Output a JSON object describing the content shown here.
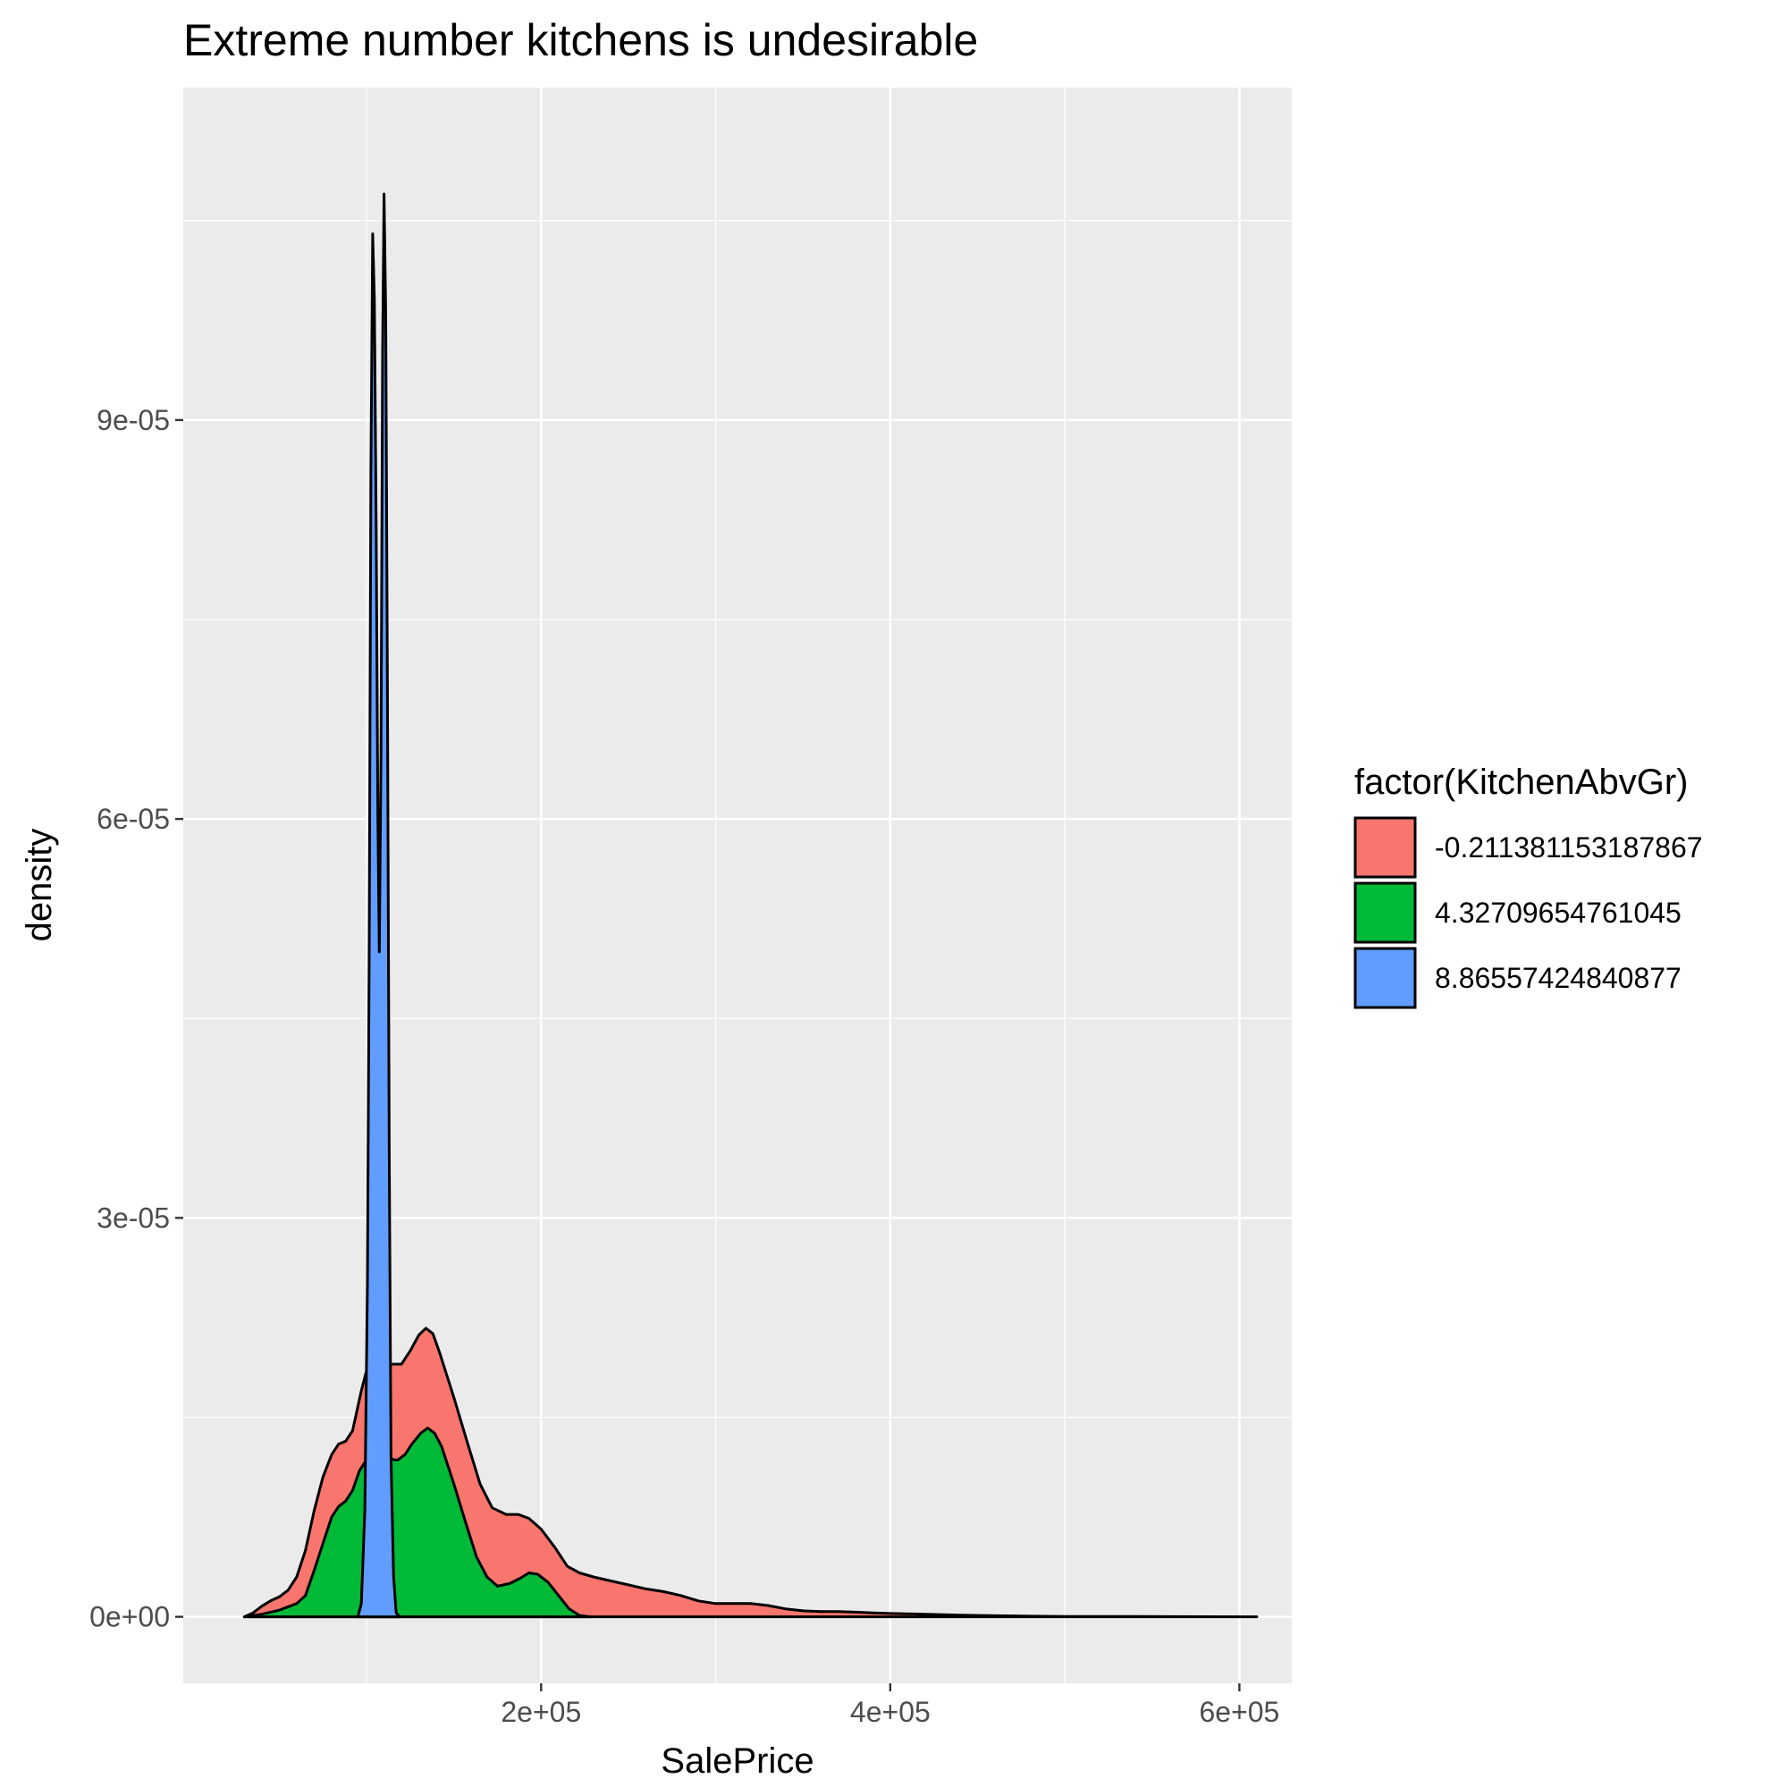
{
  "chart_data": {
    "type": "area",
    "subtype": "density",
    "title": "Extreme number kitchens is undesirable",
    "xlabel": "SalePrice",
    "ylabel": "density",
    "xlim": [
      -5000,
      630000
    ],
    "ylim": [
      -5e-06,
      0.000115
    ],
    "x_ticks": [
      {
        "value": 200000,
        "label": "2e+05"
      },
      {
        "value": 400000,
        "label": "4e+05"
      },
      {
        "value": 600000,
        "label": "6e+05"
      }
    ],
    "y_ticks": [
      {
        "value": 0,
        "label": "0e+00"
      },
      {
        "value": 3e-05,
        "label": "3e-05"
      },
      {
        "value": 6e-05,
        "label": "6e-05"
      },
      {
        "value": 9e-05,
        "label": "9e-05"
      }
    ],
    "grid": true,
    "panel_background": "#ebebeb",
    "legend": {
      "title": "factor(KitchenAbvGr)",
      "position": "right"
    },
    "series": [
      {
        "name": "-0.211381153187867",
        "color": "#f8766d",
        "points": [
          [
            30000,
            0.0
          ],
          [
            35000,
            3e-07
          ],
          [
            40000,
            8e-07
          ],
          [
            45000,
            1.2e-06
          ],
          [
            50000,
            1.5e-06
          ],
          [
            55000,
            2e-06
          ],
          [
            60000,
            3e-06
          ],
          [
            65000,
            5e-06
          ],
          [
            70000,
            8e-06
          ],
          [
            75000,
            1.05e-05
          ],
          [
            80000,
            1.22e-05
          ],
          [
            84000,
            1.3e-05
          ],
          [
            88000,
            1.32e-05
          ],
          [
            92000,
            1.4e-05
          ],
          [
            97000,
            1.7e-05
          ],
          [
            100000,
            1.85e-05
          ],
          [
            105000,
            1.88e-05
          ],
          [
            110000,
            1.88e-05
          ],
          [
            115000,
            1.9e-05
          ],
          [
            120000,
            1.9e-05
          ],
          [
            125000,
            2e-05
          ],
          [
            130000,
            2.12e-05
          ],
          [
            134000,
            2.17e-05
          ],
          [
            138000,
            2.13e-05
          ],
          [
            142000,
            1.98e-05
          ],
          [
            150000,
            1.65e-05
          ],
          [
            158000,
            1.3e-05
          ],
          [
            165000,
            1e-05
          ],
          [
            172000,
            8.2e-06
          ],
          [
            180000,
            7.7e-06
          ],
          [
            187000,
            7.7e-06
          ],
          [
            193000,
            7.4e-06
          ],
          [
            200000,
            6.6e-06
          ],
          [
            208000,
            5.2e-06
          ],
          [
            215000,
            3.8e-06
          ],
          [
            222000,
            3.3e-06
          ],
          [
            230000,
            3e-06
          ],
          [
            240000,
            2.7e-06
          ],
          [
            250000,
            2.4e-06
          ],
          [
            260000,
            2.1e-06
          ],
          [
            270000,
            1.9e-06
          ],
          [
            280000,
            1.6e-06
          ],
          [
            290000,
            1.2e-06
          ],
          [
            300000,
            1e-06
          ],
          [
            310000,
            1e-06
          ],
          [
            320000,
            1e-06
          ],
          [
            330000,
            8.5e-07
          ],
          [
            340000,
            6e-07
          ],
          [
            350000,
            4.5e-07
          ],
          [
            360000,
            4e-07
          ],
          [
            370000,
            4e-07
          ],
          [
            380000,
            3.5e-07
          ],
          [
            390000,
            3e-07
          ],
          [
            400000,
            2.5e-07
          ],
          [
            420000,
            2e-07
          ],
          [
            440000,
            1.2e-07
          ],
          [
            460000,
            8e-08
          ],
          [
            480000,
            5e-08
          ],
          [
            500000,
            3e-08
          ],
          [
            540000,
            2e-08
          ],
          [
            580000,
            1e-08
          ],
          [
            610000,
            0.0
          ]
        ]
      },
      {
        "name": "4.32709654761045",
        "color": "#00ba38",
        "points": [
          [
            30000,
            0.0
          ],
          [
            40000,
            2e-07
          ],
          [
            50000,
            5e-07
          ],
          [
            60000,
            1e-06
          ],
          [
            65000,
            1.6e-06
          ],
          [
            70000,
            3.5e-06
          ],
          [
            75000,
            5.5e-06
          ],
          [
            80000,
            7.5e-06
          ],
          [
            84000,
            8.3e-06
          ],
          [
            88000,
            8.7e-06
          ],
          [
            92000,
            9.5e-06
          ],
          [
            96000,
            1.1e-05
          ],
          [
            100000,
            1.18e-05
          ],
          [
            104000,
            1.21e-05
          ],
          [
            108000,
            1.21e-05
          ],
          [
            112000,
            1.2e-05
          ],
          [
            116000,
            1.18e-05
          ],
          [
            118000,
            1.18e-05
          ],
          [
            122000,
            1.22e-05
          ],
          [
            126000,
            1.3e-05
          ],
          [
            131000,
            1.38e-05
          ],
          [
            135000,
            1.42e-05
          ],
          [
            139000,
            1.38e-05
          ],
          [
            143000,
            1.28e-05
          ],
          [
            150000,
            1e-05
          ],
          [
            157000,
            7e-06
          ],
          [
            163000,
            4.5e-06
          ],
          [
            169000,
            3e-06
          ],
          [
            175000,
            2.3e-06
          ],
          [
            182000,
            2.5e-06
          ],
          [
            188000,
            2.9e-06
          ],
          [
            193000,
            3.3e-06
          ],
          [
            198000,
            3.2e-06
          ],
          [
            204000,
            2.6e-06
          ],
          [
            210000,
            1.6e-06
          ],
          [
            216000,
            6e-07
          ],
          [
            222000,
            1e-07
          ],
          [
            228000,
            0.0
          ]
        ]
      },
      {
        "name": "8.86557424840877",
        "color": "#619cff",
        "points": [
          [
            95000,
            0.0
          ],
          [
            97000,
            1e-06
          ],
          [
            99000,
            8e-06
          ],
          [
            100500,
            2.5e-05
          ],
          [
            101500,
            5e-05
          ],
          [
            102500,
            8.6e-05
          ],
          [
            103500,
            0.000104
          ],
          [
            104500,
            9.9e-05
          ],
          [
            105500,
            8.2e-05
          ],
          [
            106500,
            6e-05
          ],
          [
            107300,
            5e-05
          ],
          [
            108300,
            6.5e-05
          ],
          [
            109200,
            9.5e-05
          ],
          [
            110000,
            0.000107
          ],
          [
            111000,
            9.8e-05
          ],
          [
            112000,
            6.8e-05
          ],
          [
            113000,
            3.5e-05
          ],
          [
            114000,
            1.2e-05
          ],
          [
            115500,
            3e-06
          ],
          [
            117000,
            3e-07
          ],
          [
            119000,
            0.0
          ]
        ]
      }
    ]
  }
}
